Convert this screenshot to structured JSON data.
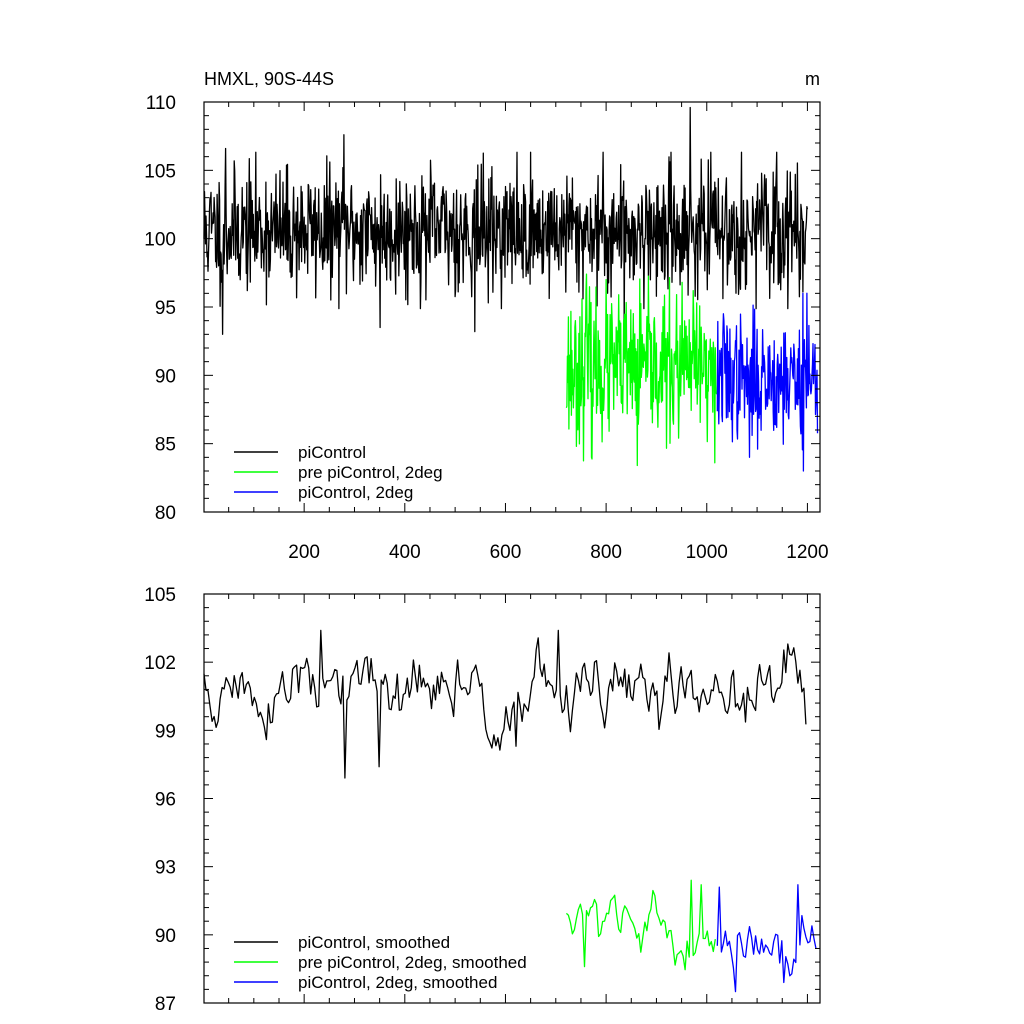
{
  "figure": {
    "title_left": "HMXL, 90S-44S",
    "title_right": "m"
  },
  "chart_data": [
    {
      "type": "line",
      "title": "HMXL, 90S-44S",
      "units": "m",
      "xlim": [
        1,
        1225
      ],
      "ylim": [
        80,
        110
      ],
      "x_ticks": [
        200,
        400,
        600,
        800,
        1000,
        1200
      ],
      "x_tick_labels": [
        "200",
        "400",
        "600",
        "800",
        "1000",
        "1200"
      ],
      "y_ticks": [
        80,
        85,
        90,
        95,
        100,
        105,
        110
      ],
      "y_tick_labels": [
        "80",
        "85",
        "90",
        "95",
        "100",
        "105",
        "110"
      ],
      "grid": false,
      "legend_position": "bottom-left",
      "series": [
        {
          "name": "piControl",
          "color": "#000000",
          "x_start": 1,
          "x_end": 1200,
          "step": 1,
          "mean": 100.6,
          "amp": 2.2,
          "seed": 11,
          "extremes": [
            [
              38,
              93.0
            ],
            [
              44,
              106.6
            ],
            [
              279,
              107.6
            ],
            [
              351,
              93.5
            ],
            [
              539,
              93.2
            ],
            [
              967,
              109.6
            ],
            [
              836,
              93.6
            ]
          ]
        },
        {
          "name": "pre piControl, 2deg",
          "color": "#00ff00",
          "x_start": 721,
          "x_end": 1020,
          "step": 1,
          "mean": 90.5,
          "amp": 2.6,
          "seed": 23,
          "extremes": [
            [
              761,
              97.4
            ],
            [
              771,
              84.0
            ],
            [
              862,
              83.4
            ],
            [
              1016,
              83.6
            ],
            [
              980,
              95.3
            ]
          ]
        },
        {
          "name": "piControl, 2deg",
          "color": "#0000ff",
          "x_start": 1021,
          "x_end": 1220,
          "step": 1,
          "mean": 89.8,
          "amp": 2.2,
          "seed": 37,
          "extremes": [
            [
              1191,
              96.0
            ],
            [
              1199,
              96.0
            ],
            [
              1192,
              83.0
            ],
            [
              1085,
              84.0
            ],
            [
              1033,
              94.5
            ]
          ]
        }
      ]
    },
    {
      "type": "line",
      "xlim": [
        1,
        1225
      ],
      "ylim": [
        87,
        105
      ],
      "x_ticks": [
        200,
        400,
        600,
        800,
        1000,
        1200
      ],
      "x_tick_labels": [],
      "y_ticks": [
        87,
        90,
        93,
        96,
        99,
        102,
        105
      ],
      "y_tick_labels": [
        "87",
        "90",
        "93",
        "96",
        "99",
        "102",
        "105"
      ],
      "grid": false,
      "legend_position": "bottom-left",
      "series": [
        {
          "name": "piControl, smoothed",
          "color": "#000000",
          "x_start": 1,
          "x_end": 1200,
          "step": 4,
          "mean": 100.6,
          "amp": 0.95,
          "seed": 51,
          "extremes": [
            [
              281,
              96.9
            ],
            [
              349,
              97.4
            ],
            [
              233,
              103.4
            ],
            [
              705,
              103.4
            ],
            [
              623,
              98.3
            ],
            [
              1163,
              102.8
            ]
          ]
        },
        {
          "name": "pre piControl, 2deg, smoothed",
          "color": "#00ff00",
          "x_start": 721,
          "x_end": 1020,
          "step": 4,
          "mean": 90.1,
          "amp": 0.75,
          "seed": 63,
          "extremes": [
            [
              969,
              92.4
            ],
            [
              757,
              88.6
            ],
            [
              989,
              92.2
            ]
          ]
        },
        {
          "name": "piControl, 2deg, smoothed",
          "color": "#0000ff",
          "x_start": 1021,
          "x_end": 1220,
          "step": 4,
          "mean": 89.6,
          "amp": 0.9,
          "seed": 77,
          "extremes": [
            [
              1057,
              87.5
            ],
            [
              1183,
              92.2
            ],
            [
              1025,
              92.1
            ],
            [
              1153,
              87.9
            ]
          ]
        }
      ]
    }
  ]
}
